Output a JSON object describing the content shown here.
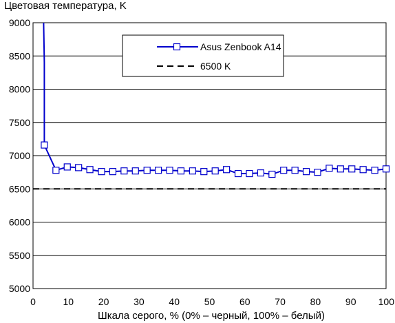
{
  "chart_data": {
    "type": "line",
    "title": "",
    "ylabel": "Цветовая температура, K",
    "xlabel": "Шкала серого, % (0% – черный, 100% – белый)",
    "xlim": [
      0,
      100
    ],
    "ylim": [
      5000,
      9000
    ],
    "xticks": [
      0,
      10,
      20,
      30,
      40,
      50,
      60,
      70,
      80,
      90,
      100
    ],
    "yticks": [
      5000,
      5500,
      6000,
      6500,
      7000,
      7500,
      8000,
      8500,
      9000
    ],
    "grid": "horizontal",
    "legend_position": "top-center",
    "series": [
      {
        "name": "Asus Zenbook A14",
        "color": "#0000cc",
        "marker": "square",
        "x": [
          3.2,
          6.5,
          9.7,
          12.9,
          16.1,
          19.4,
          22.6,
          25.8,
          29.0,
          32.3,
          35.5,
          38.7,
          41.9,
          45.2,
          48.4,
          51.6,
          54.8,
          58.1,
          61.3,
          64.5,
          67.7,
          71.0,
          74.2,
          77.4,
          80.6,
          83.9,
          87.1,
          90.3,
          93.5,
          96.8,
          100.0
        ],
        "y": [
          7160,
          6780,
          6830,
          6820,
          6790,
          6760,
          6760,
          6770,
          6770,
          6780,
          6780,
          6780,
          6770,
          6770,
          6760,
          6770,
          6790,
          6730,
          6730,
          6740,
          6720,
          6780,
          6780,
          6760,
          6750,
          6810,
          6800,
          6800,
          6790,
          6780,
          6800
        ],
        "extra_start": [
          [
            3.0,
            9000
          ],
          [
            3.2,
            8400
          ]
        ]
      },
      {
        "name": "6500 K",
        "color": "#000000",
        "dashed": true,
        "x": [
          0,
          100
        ],
        "y": [
          6500,
          6500
        ]
      }
    ]
  }
}
